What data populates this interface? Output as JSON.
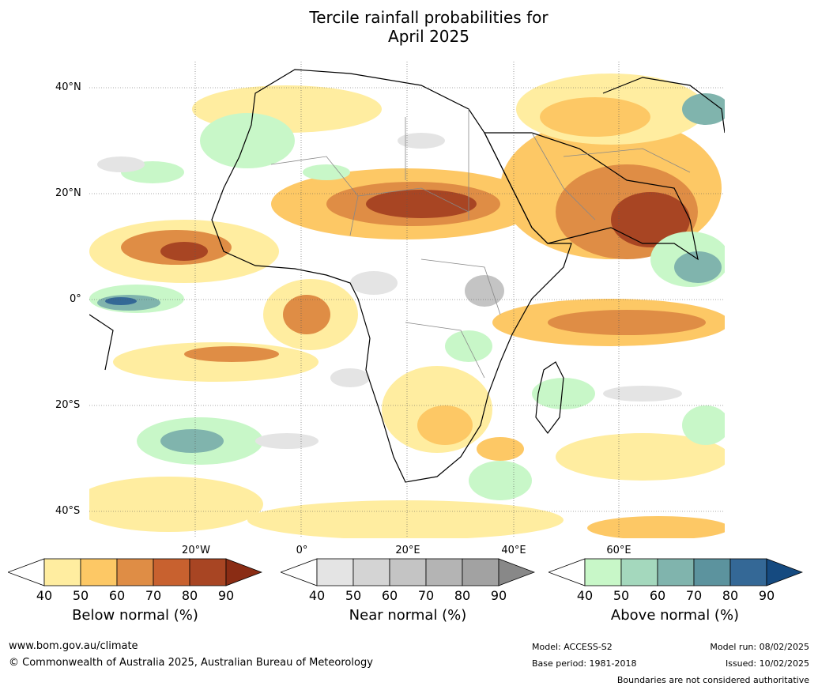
{
  "title_line1": "Tercile rainfall probabilities for",
  "title_line2": "April 2025",
  "lat_labels": [
    "40°N",
    "20°N",
    "0°",
    "20°S",
    "40°S"
  ],
  "lon_labels": [
    "20°W",
    "0°",
    "20°E",
    "40°E",
    "60°E"
  ],
  "colorbars": [
    {
      "title": "Below normal (%)",
      "ticks": [
        "40",
        "50",
        "60",
        "70",
        "80",
        "90"
      ],
      "colors": [
        "#ffffff",
        "#ffeda0",
        "#fdc865",
        "#df8d45",
        "#c8612f",
        "#a84523",
        "#8a2c14"
      ]
    },
    {
      "title": "Near normal (%)",
      "ticks": [
        "40",
        "50",
        "60",
        "70",
        "80",
        "90"
      ],
      "colors": [
        "#ffffff",
        "#e4e4e4",
        "#d4d4d4",
        "#c4c4c4",
        "#b4b4b4",
        "#a2a2a2",
        "#888888"
      ]
    },
    {
      "title": "Above normal (%)",
      "ticks": [
        "40",
        "50",
        "60",
        "70",
        "80",
        "90"
      ],
      "colors": [
        "#ffffff",
        "#c8f7c8",
        "#a4d8bd",
        "#80b4ad",
        "#5c939e",
        "#346896",
        "#154a80"
      ]
    }
  ],
  "footer": {
    "website": "www.bom.gov.au/climate",
    "copyright": "© Commonwealth of Australia 2025, Australian Bureau of Meteorology",
    "model": "Model: ACCESS-S2",
    "base_period": "Base period: 1981-2018",
    "model_run": "Model run: 08/02/2025",
    "issued": "Issued: 10/02/2025",
    "disclaimer": "Boundaries are not considered authoritative"
  }
}
